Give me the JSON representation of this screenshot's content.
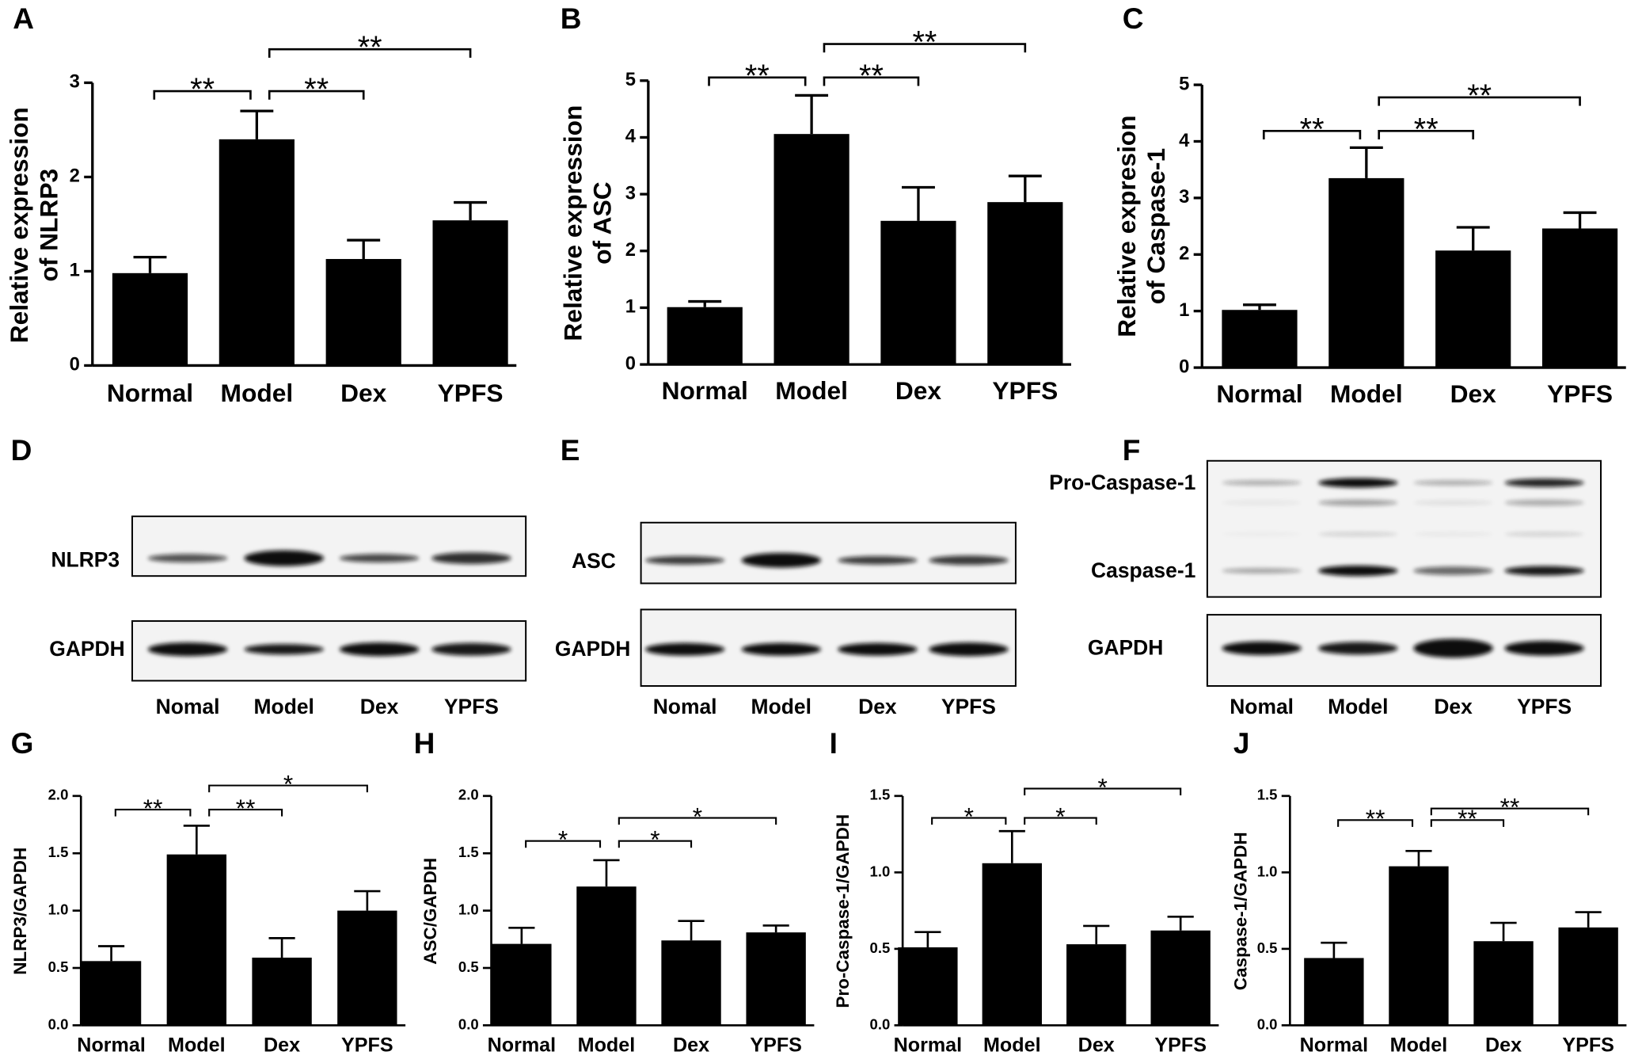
{
  "chart_data": [
    {
      "type": "bar",
      "panel": "A",
      "ylabel": [
        "Relative expression",
        "of NLRP3"
      ],
      "categories": [
        "Normal",
        "Model",
        "Dex",
        "YPFS"
      ],
      "values": [
        0.98,
        2.4,
        1.13,
        1.54
      ],
      "errors": [
        0.17,
        0.3,
        0.2,
        0.19
      ],
      "color": "#000000",
      "ylim": [
        0,
        3
      ],
      "yticks": [
        0,
        1,
        2,
        3
      ],
      "significance": [
        {
          "label": "**",
          "between": [
            "Normal",
            "Model"
          ]
        },
        {
          "label": "**",
          "between": [
            "Model",
            "Dex"
          ]
        },
        {
          "label": "**",
          "between": [
            "Model",
            "YPFS"
          ]
        }
      ]
    },
    {
      "type": "bar",
      "panel": "B",
      "ylabel": [
        "Relative expression",
        "of ASC"
      ],
      "categories": [
        "Normal",
        "Model",
        "Dex",
        "YPFS"
      ],
      "values": [
        1.01,
        4.06,
        2.53,
        2.86
      ],
      "errors": [
        0.1,
        0.68,
        0.59,
        0.46
      ],
      "color": "#000000",
      "ylim": [
        0,
        5
      ],
      "yticks": [
        0,
        1,
        2,
        3,
        4,
        5
      ],
      "significance": [
        {
          "label": "**",
          "between": [
            "Normal",
            "Model"
          ]
        },
        {
          "label": "**",
          "between": [
            "Model",
            "Dex"
          ]
        },
        {
          "label": "**",
          "between": [
            "Model",
            "YPFS"
          ]
        }
      ]
    },
    {
      "type": "bar",
      "panel": "C",
      "ylabel": [
        "Relative expresion",
        "of Caspase-1"
      ],
      "categories": [
        "Normal",
        "Model",
        "Dex",
        "YPFS"
      ],
      "values": [
        1.02,
        3.35,
        2.07,
        2.46
      ],
      "errors": [
        0.09,
        0.54,
        0.41,
        0.28
      ],
      "color": "#000000",
      "ylim": [
        0,
        5
      ],
      "yticks": [
        0,
        1,
        2,
        3,
        4,
        5
      ],
      "significance": [
        {
          "label": "**",
          "between": [
            "Normal",
            "Model"
          ]
        },
        {
          "label": "**",
          "between": [
            "Model",
            "Dex"
          ]
        },
        {
          "label": "**",
          "between": [
            "Model",
            "YPFS"
          ]
        }
      ]
    },
    {
      "type": "bar",
      "panel": "G",
      "ylabel": [
        "NLRP3/GAPDH"
      ],
      "categories": [
        "Normal",
        "Model",
        "Dex",
        "YPFS"
      ],
      "values": [
        0.56,
        1.49,
        0.59,
        1.0
      ],
      "errors": [
        0.13,
        0.25,
        0.17,
        0.17
      ],
      "color": "#000000",
      "ylim": [
        0,
        2
      ],
      "yticks": [
        {
          "value": 0,
          "label": "0.0"
        },
        0.5,
        {
          "value": 1,
          "label": "1.0"
        },
        1.5,
        {
          "value": 2,
          "label": "2.0"
        }
      ],
      "significance": [
        {
          "label": "**",
          "between": [
            "Normal",
            "Model"
          ]
        },
        {
          "label": "**",
          "between": [
            "Model",
            "Dex"
          ]
        },
        {
          "label": "*",
          "between": [
            "Model",
            "YPFS"
          ]
        }
      ]
    },
    {
      "type": "bar",
      "panel": "H",
      "ylabel": [
        "ASC/GAPDH"
      ],
      "categories": [
        "Normal",
        "Model",
        "Dex",
        "YPFS"
      ],
      "values": [
        0.71,
        1.21,
        0.74,
        0.81
      ],
      "errors": [
        0.14,
        0.23,
        0.17,
        0.06
      ],
      "color": "#000000",
      "ylim": [
        0,
        2
      ],
      "yticks": [
        {
          "value": 0,
          "label": "0.0"
        },
        0.5,
        {
          "value": 1,
          "label": "1.0"
        },
        1.5,
        {
          "value": 2,
          "label": "2.0"
        }
      ],
      "significance": [
        {
          "label": "*",
          "between": [
            "Normal",
            "Model"
          ]
        },
        {
          "label": "*",
          "between": [
            "Model",
            "Dex"
          ]
        },
        {
          "label": "*",
          "between": [
            "Model",
            "YPFS"
          ]
        }
      ]
    },
    {
      "type": "bar",
      "panel": "I",
      "ylabel": [
        "Pro-Caspase-1/GAPDH"
      ],
      "categories": [
        "Normal",
        "Model",
        "Dex",
        "YPFS"
      ],
      "values": [
        0.51,
        1.06,
        0.53,
        0.62
      ],
      "errors": [
        0.1,
        0.21,
        0.12,
        0.09
      ],
      "color": "#000000",
      "ylim": [
        0,
        1.5
      ],
      "yticks": [
        {
          "value": 0,
          "label": "0.0"
        },
        0.5,
        {
          "value": 1,
          "label": "1.0"
        },
        1.5
      ],
      "significance": [
        {
          "label": "*",
          "between": [
            "Normal",
            "Model"
          ]
        },
        {
          "label": "*",
          "between": [
            "Model",
            "Dex"
          ]
        },
        {
          "label": "*",
          "between": [
            "Model",
            "YPFS"
          ]
        }
      ]
    },
    {
      "type": "bar",
      "panel": "J",
      "ylabel": [
        "Caspase-1/GAPDH"
      ],
      "categories": [
        "Normal",
        "Model",
        "Dex",
        "YPFS"
      ],
      "values": [
        0.44,
        1.04,
        0.55,
        0.64
      ],
      "errors": [
        0.1,
        0.1,
        0.12,
        0.1
      ],
      "color": "#000000",
      "ylim": [
        0,
        1.5
      ],
      "yticks": [
        {
          "value": 0,
          "label": "0.0"
        },
        0.5,
        {
          "value": 1,
          "label": "1.0"
        },
        1.5
      ],
      "significance": [
        {
          "label": "**",
          "between": [
            "Normal",
            "Model"
          ]
        },
        {
          "label": "**",
          "between": [
            "Model",
            "Dex"
          ]
        },
        {
          "label": "**",
          "between": [
            "Model",
            "YPFS"
          ]
        }
      ]
    }
  ],
  "blots": [
    {
      "panel": "D",
      "labels": [
        "NLRP3",
        "GAPDH"
      ],
      "lanes": [
        "Nomal",
        "Model",
        "Dex",
        "YPFS"
      ]
    },
    {
      "panel": "E",
      "labels": [
        "ASC",
        "GAPDH"
      ],
      "lanes": [
        "Nomal",
        "Model",
        "Dex",
        "YPFS"
      ]
    },
    {
      "panel": "F",
      "labels": [
        "Pro-Caspase-1",
        "Caspase-1",
        "GAPDH"
      ],
      "lanes": [
        "Nomal",
        "Model",
        "Dex",
        "YPFS"
      ]
    }
  ]
}
